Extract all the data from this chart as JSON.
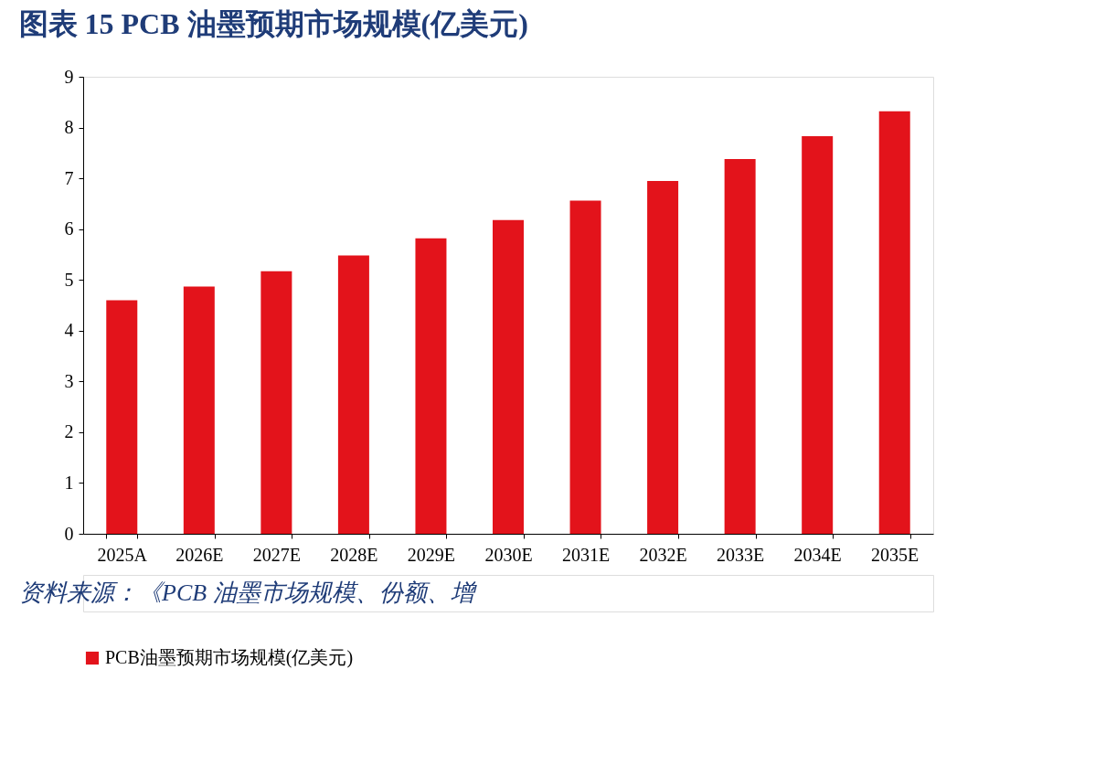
{
  "chart_data": {
    "type": "bar",
    "title": "图表 15   PCB 油墨预期市场规模(亿美元)",
    "categories": [
      "2025A",
      "2026E",
      "2027E",
      "2028E",
      "2029E",
      "2030E",
      "2031E",
      "2032E",
      "2033E",
      "2034E",
      "2035E"
    ],
    "series": [
      {
        "name": "PCB油墨预期市场规模(亿美元)",
        "color": "#e3131b",
        "values": [
          4.6,
          4.87,
          5.17,
          5.48,
          5.82,
          6.18,
          6.56,
          6.95,
          7.38,
          7.83,
          8.32
        ]
      }
    ],
    "ylim": [
      0,
      9
    ],
    "yticks": [
      0,
      1,
      2,
      3,
      4,
      5,
      6,
      7,
      8,
      9
    ],
    "grid": false,
    "legend": "bottom",
    "annotations": [
      "资料来源：《PCB 油墨市场规模、份额、增"
    ]
  }
}
